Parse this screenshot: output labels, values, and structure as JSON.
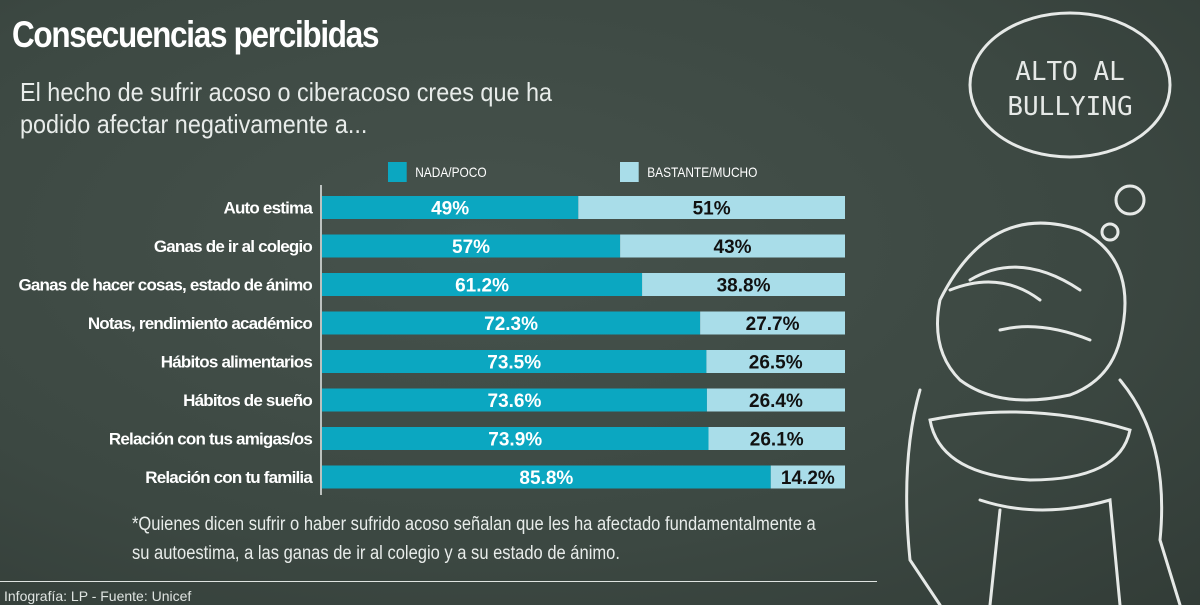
{
  "title": "Consecuencias percibidas",
  "subtitle": "El hecho de sufrir acoso o ciberacoso crees que ha podido afectar negativamente a...",
  "note": "*Quienes dicen sufrir o haber sufrido acoso señalan que les ha afectado fundamentalmente a su autoestima, a las ganas de ir al colegio y a su estado de ánimo.",
  "source": "Infografía: LP - Fuente: Unicef",
  "illustration": {
    "bubble_line1": "ALTO AL",
    "bubble_line2": "BULLYING"
  },
  "colors": {
    "nada": "#0ba7c1",
    "bastante": "#a9dde9"
  },
  "chart_data": {
    "type": "bar",
    "stacked": true,
    "orientation": "horizontal",
    "categories": [
      "Auto estima",
      "Ganas de ir al colegio",
      "Ganas de hacer cosas, estado de ánimo",
      "Notas, rendimiento académico",
      "Hábitos alimentarios",
      "Hábitos de sueño",
      "Relación con tus amigas/os",
      "Relación con tu familia"
    ],
    "series": [
      {
        "name": "NADA/POCO",
        "values": [
          49,
          57,
          61.2,
          72.3,
          73.5,
          73.6,
          73.9,
          85.8
        ],
        "labels": [
          "49%",
          "57%",
          "61.2%",
          "72.3%",
          "73.5%",
          "73.6%",
          "73.9%",
          "85.8%"
        ]
      },
      {
        "name": "BASTANTE/MUCHO",
        "values": [
          51,
          43,
          38.8,
          27.7,
          26.5,
          26.4,
          26.1,
          14.2
        ],
        "labels": [
          "51%",
          "43%",
          "38.8%",
          "27.7%",
          "26.5%",
          "26.4%",
          "26.1%",
          "14.2%"
        ]
      }
    ],
    "xlim": [
      0,
      100
    ],
    "legend": "top"
  }
}
